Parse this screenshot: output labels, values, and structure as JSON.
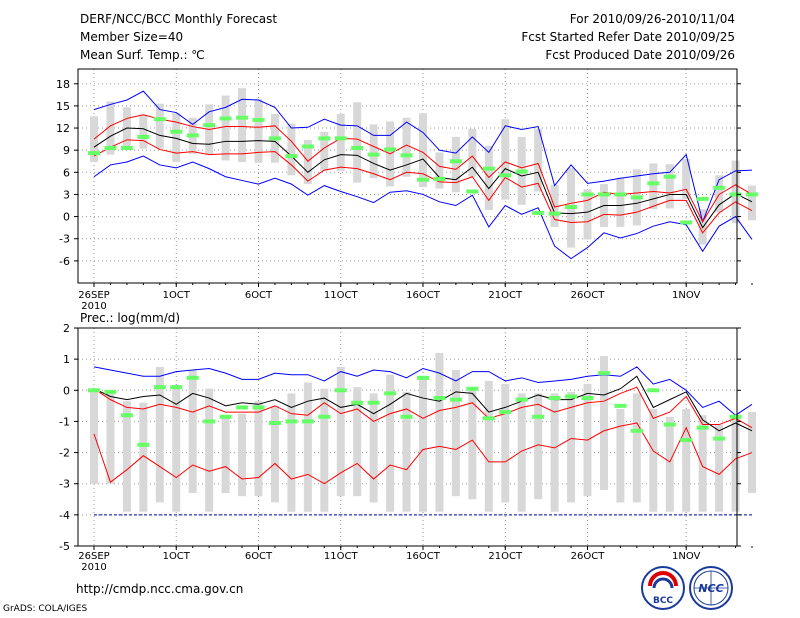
{
  "header": {
    "title": "DERF/NCC/BCC Monthly Forecast",
    "member_size": "Member Size=40",
    "variable": "Mean Surf. Temp.: ℃",
    "forecast_period": "For 2010/09/26-2010/11/04",
    "started_refer": "Fcst Started Refer Date 2010/09/25",
    "produced": "Fcst Produced Date 2010/09/26"
  },
  "footer": {
    "url": "http://cmdp.ncc.cma.gov.cn",
    "credit": "GrADS: COLA/IGES",
    "logo1_text": "BCC",
    "logo2_text": "NCC"
  },
  "chart_data": [
    {
      "type": "line",
      "title": "Mean Surf. Temp.: ℃",
      "ylim": [
        -9,
        20
      ],
      "yticks": [
        -6,
        -3,
        0,
        3,
        6,
        9,
        12,
        15,
        18
      ],
      "xticks": [
        {
          "day": 0,
          "label": "26SEP",
          "sublabel": "2010"
        },
        {
          "day": 5,
          "label": "1OCT"
        },
        {
          "day": 10,
          "label": "6OCT"
        },
        {
          "day": 15,
          "label": "11OCT"
        },
        {
          "day": 20,
          "label": "16OCT"
        },
        {
          "day": 25,
          "label": "21OCT"
        },
        {
          "day": 30,
          "label": "26OCT"
        },
        {
          "day": 36,
          "label": "1NOV"
        }
      ],
      "grid": true,
      "days": 40,
      "series": [
        {
          "name": "ensemble-max",
          "color": "#0000ff",
          "values": [
            14.5,
            15.2,
            15.8,
            17,
            14.5,
            14.1,
            12.5,
            14.2,
            14.8,
            15.9,
            15.8,
            14.8,
            12,
            12.1,
            13.2,
            12.4,
            12.3,
            11,
            11,
            12.8,
            11.4,
            9,
            8.6,
            10.8,
            8.7,
            12.3,
            11.8,
            12.2,
            4.2,
            7,
            4.5,
            4.8,
            5.2,
            5.5,
            5.8,
            6,
            8.4,
            -0.7,
            5,
            6.2,
            6.3
          ]
        },
        {
          "name": "upper-percentile",
          "color": "#ff0000",
          "values": [
            10.5,
            12.3,
            13.3,
            13.8,
            13.2,
            12.8,
            12.2,
            11.8,
            12.2,
            12.2,
            12.1,
            12.3,
            10.2,
            7.5,
            9.3,
            10.6,
            10.5,
            9.5,
            8.5,
            9.7,
            8.7,
            6.8,
            6.4,
            8.2,
            5.3,
            7.4,
            6.6,
            7.2,
            1.3,
            1.8,
            2.2,
            3.3,
            3,
            3.2,
            3.4,
            3.2,
            3.7,
            -0.7,
            3,
            4.3,
            3
          ]
        },
        {
          "name": "ensemble-mean",
          "color": "#000000",
          "values": [
            9.4,
            10.9,
            12,
            11.9,
            11,
            10.6,
            9.9,
            9.8,
            10.2,
            10.2,
            10.3,
            10.2,
            8.2,
            6,
            7.7,
            8.4,
            8.3,
            7.2,
            6.3,
            7,
            7.8,
            5.3,
            5,
            6.7,
            3.8,
            6.5,
            5.5,
            6,
            0.5,
            0.4,
            0.6,
            1.5,
            1.5,
            1.8,
            2.4,
            3,
            3,
            -1.5,
            1.6,
            3.1,
            2
          ]
        },
        {
          "name": "lower-percentile",
          "color": "#ff0000",
          "values": [
            8.2,
            9.4,
            10.4,
            10.3,
            9.1,
            8.6,
            8.8,
            8.4,
            8.5,
            8.5,
            8.7,
            8.8,
            7,
            4.8,
            6.3,
            6.7,
            6.5,
            5.8,
            5,
            6,
            5.8,
            4.7,
            4.6,
            5.4,
            2.2,
            5.3,
            4,
            4.5,
            -0.4,
            -0.8,
            -0.7,
            0.3,
            0.2,
            0.6,
            1.4,
            2.2,
            2.2,
            -2.2,
            0.5,
            2,
            0.8
          ]
        },
        {
          "name": "ensemble-min",
          "color": "#0000ff",
          "values": [
            5.4,
            7,
            7.4,
            8.2,
            7,
            6.6,
            7.4,
            6.5,
            5.4,
            4.9,
            4.4,
            5.2,
            4.4,
            2.9,
            4.2,
            3.4,
            2.7,
            1.9,
            3.3,
            3.5,
            3,
            2,
            1.5,
            2.9,
            -1.4,
            1.5,
            0.3,
            1.2,
            -4,
            -5.7,
            -4.2,
            -2.2,
            -2.9,
            -2.3,
            -1.3,
            -0.7,
            -1.1,
            -4.7,
            -1.3,
            0,
            -3.1
          ]
        }
      ],
      "bars": {
        "name": "member-spread",
        "color": "#d8d8d8",
        "ranges": [
          [
            7.4,
            13.6
          ],
          [
            8.4,
            15.6
          ],
          [
            9.4,
            14.8
          ],
          [
            9.2,
            13.8
          ],
          [
            9.2,
            15.3
          ],
          [
            7.4,
            14
          ],
          [
            8.5,
            13.4
          ],
          [
            8.4,
            15.2
          ],
          [
            7.6,
            16.4
          ],
          [
            7.4,
            17.4
          ],
          [
            7.3,
            15.9
          ],
          [
            7.3,
            13.9
          ],
          [
            5.6,
            12.6
          ],
          [
            4.4,
            10.4
          ],
          [
            6.2,
            11.5
          ],
          [
            6.2,
            13.9
          ],
          [
            4.6,
            15.5
          ],
          [
            5.2,
            12.5
          ],
          [
            4.1,
            12.9
          ],
          [
            5.4,
            13.4
          ],
          [
            4,
            14
          ],
          [
            3.8,
            8.7
          ],
          [
            3.3,
            10.8
          ],
          [
            5.4,
            11.9
          ],
          [
            0.9,
            9.6
          ],
          [
            2.3,
            13.2
          ],
          [
            1.6,
            10.8
          ],
          [
            3.4,
            11.9
          ],
          [
            -1.4,
            4.3
          ],
          [
            -4.2,
            6.6
          ],
          [
            -3.1,
            3.7
          ],
          [
            -1.4,
            4.4
          ],
          [
            -1.4,
            5.3
          ],
          [
            -1.2,
            6.4
          ],
          [
            1,
            7.2
          ],
          [
            1.1,
            7.1
          ],
          [
            2.4,
            7.8
          ],
          [
            -3.8,
            1
          ],
          [
            0.6,
            5.6
          ],
          [
            -0.9,
            7.6
          ],
          [
            -0.5,
            4.2
          ]
        ]
      },
      "observed": {
        "name": "observed",
        "color": "#66ff66",
        "values": [
          8.6,
          9.3,
          9.3,
          10.8,
          13.2,
          11.5,
          11,
          12.4,
          13.3,
          13.4,
          13.1,
          10.6,
          8.2,
          9.5,
          10.6,
          10.6,
          9.3,
          8.4,
          9.1,
          8.3,
          5,
          5.1,
          7.5,
          3.4,
          6.5,
          5.6,
          6.1,
          0.5,
          0.4,
          1.3,
          3,
          3,
          3,
          2.6,
          4.5,
          5.4,
          -0.8,
          2.4,
          3.9,
          3,
          3
        ]
      }
    },
    {
      "type": "line",
      "title": "Prec.: log(mm/d)",
      "ylim": [
        -5,
        2
      ],
      "yticks": [
        -5,
        -4,
        -3,
        -2,
        -1,
        0,
        1,
        2
      ],
      "xticks": [
        {
          "day": 0,
          "label": "26SEP",
          "sublabel": "2010"
        },
        {
          "day": 5,
          "label": "1OCT"
        },
        {
          "day": 10,
          "label": "6OCT"
        },
        {
          "day": 15,
          "label": "11OCT"
        },
        {
          "day": 20,
          "label": "16OCT"
        },
        {
          "day": 25,
          "label": "21OCT"
        },
        {
          "day": 30,
          "label": "26OCT"
        },
        {
          "day": 36,
          "label": "1NOV"
        }
      ],
      "grid": true,
      "days": 40,
      "baseline": -4,
      "series": [
        {
          "name": "ensemble-max",
          "color": "#0000ff",
          "values": [
            0.75,
            0.65,
            0.55,
            0.45,
            0.45,
            0.6,
            0.65,
            0.7,
            0.55,
            0.35,
            0.35,
            0.55,
            0.5,
            0.5,
            0.3,
            0.6,
            0.45,
            0.65,
            0.6,
            0.4,
            0.7,
            0.55,
            0.3,
            0.6,
            0.6,
            0.3,
            0.4,
            0.25,
            0.3,
            0.35,
            0.45,
            0.5,
            0.45,
            0.75,
            0.2,
            0.35,
            0,
            -0.55,
            -0.35,
            -0.8,
            -0.45
          ]
        },
        {
          "name": "upper-percentile",
          "color": "#ff0000",
          "values": [
            0.05,
            -0.3,
            -0.55,
            -0.6,
            -0.45,
            -0.55,
            -0.7,
            -0.5,
            -0.7,
            -0.7,
            -0.7,
            -0.5,
            -0.75,
            -0.8,
            -0.4,
            -0.75,
            -0.6,
            -1,
            -0.75,
            -0.6,
            -0.9,
            -0.65,
            -0.55,
            -0.4,
            -0.9,
            -0.75,
            -0.55,
            -0.45,
            -0.7,
            -0.55,
            -0.4,
            -0.35,
            -0.1,
            0.1,
            -0.9,
            -0.7,
            -0.2,
            -1.1,
            -1.1,
            -0.9,
            -1.2
          ]
        },
        {
          "name": "ensemble-mean",
          "color": "#000000",
          "values": [
            0.05,
            -0.2,
            -0.3,
            -0.2,
            -0.15,
            -0.45,
            -0.1,
            -0.25,
            -0.5,
            -0.4,
            -0.45,
            -0.3,
            -0.55,
            -0.35,
            -0.25,
            -0.55,
            -0.45,
            -0.75,
            -0.45,
            -0.1,
            -0.25,
            -0.35,
            -0.05,
            -0.1,
            -0.7,
            -0.55,
            -0.35,
            -0.15,
            -0.3,
            -0.3,
            -0.1,
            -0.15,
            0.05,
            0.45,
            -0.55,
            -0.3,
            -0.05,
            -0.95,
            -1.3,
            -1.05,
            -1.3
          ]
        },
        {
          "name": "lower-percentile",
          "color": "#ff0000",
          "values": [
            -1.4,
            -2.95,
            -2.55,
            -2.1,
            -2.45,
            -2.8,
            -2.4,
            -2.6,
            -2.45,
            -2.85,
            -2.8,
            -2.35,
            -2.85,
            -2.7,
            -3,
            -2.65,
            -2.35,
            -2.85,
            -2.4,
            -2.55,
            -1.9,
            -1.8,
            -1.9,
            -1.6,
            -2.3,
            -2.3,
            -1.95,
            -1.75,
            -1.85,
            -1.55,
            -1.6,
            -1.3,
            -1.15,
            -1.05,
            -1.95,
            -2.3,
            -1.2,
            -2.45,
            -2.7,
            -2.2,
            -2
          ]
        }
      ],
      "bars": {
        "name": "member-spread",
        "color": "#d8d8d8",
        "ranges": [
          [
            -3,
            0.05
          ],
          [
            -3,
            -0.05
          ],
          [
            -3.9,
            -0.35
          ],
          [
            -3.9,
            -0.4
          ],
          [
            -3.6,
            0.75
          ],
          [
            -3.9,
            0.1
          ],
          [
            -3.3,
            0.65
          ],
          [
            -3.9,
            0.05
          ],
          [
            -3.3,
            -0.85
          ],
          [
            -3.4,
            -0.75
          ],
          [
            -3.4,
            -0.35
          ],
          [
            -3.6,
            -0.5
          ],
          [
            -3.9,
            -0.1
          ],
          [
            -3.9,
            0.25
          ],
          [
            -3.9,
            0.05
          ],
          [
            -3.4,
            0.75
          ],
          [
            -3.4,
            0.1
          ],
          [
            -3.6,
            -0.1
          ],
          [
            -3.9,
            0.5
          ],
          [
            -3.9,
            -0.05
          ],
          [
            -3.9,
            0.4
          ],
          [
            -3.9,
            1.2
          ],
          [
            -3.4,
            0.65
          ],
          [
            -3.5,
            0.1
          ],
          [
            -3.9,
            0.3
          ],
          [
            -3.6,
            0.2
          ],
          [
            -3.9,
            -0.1
          ],
          [
            -3.5,
            -0.1
          ],
          [
            -3.9,
            -0.1
          ],
          [
            -3.6,
            -0.05
          ],
          [
            -3.4,
            0.2
          ],
          [
            -3.2,
            1.1
          ],
          [
            -3.6,
            -0.6
          ],
          [
            -3.6,
            -0.1
          ],
          [
            -3.9,
            -0.6
          ],
          [
            -3.9,
            -0.85
          ],
          [
            -3.9,
            -0.6
          ],
          [
            -3.9,
            -0.8
          ],
          [
            -3.9,
            -1.1
          ],
          [
            -3.9,
            -0.8
          ],
          [
            -3.3,
            -0.7
          ]
        ]
      },
      "observed": {
        "name": "observed",
        "color": "#66ff66",
        "values": [
          0,
          -0.05,
          -0.8,
          -1.75,
          0.1,
          0.1,
          0.4,
          -1,
          -0.85,
          -0.55,
          -0.55,
          -1.05,
          -1,
          -1,
          -0.85,
          0,
          -0.4,
          -0.4,
          -0.1,
          -0.85,
          0.4,
          -0.25,
          -0.3,
          0.05,
          -0.9,
          -0.7,
          -0.3,
          -0.85,
          -0.25,
          -0.2,
          -0.25,
          0.55,
          -0.5,
          -1.3,
          0,
          -1.1,
          -1.6,
          -1.2,
          -1.55,
          -0.85
        ]
      }
    }
  ]
}
